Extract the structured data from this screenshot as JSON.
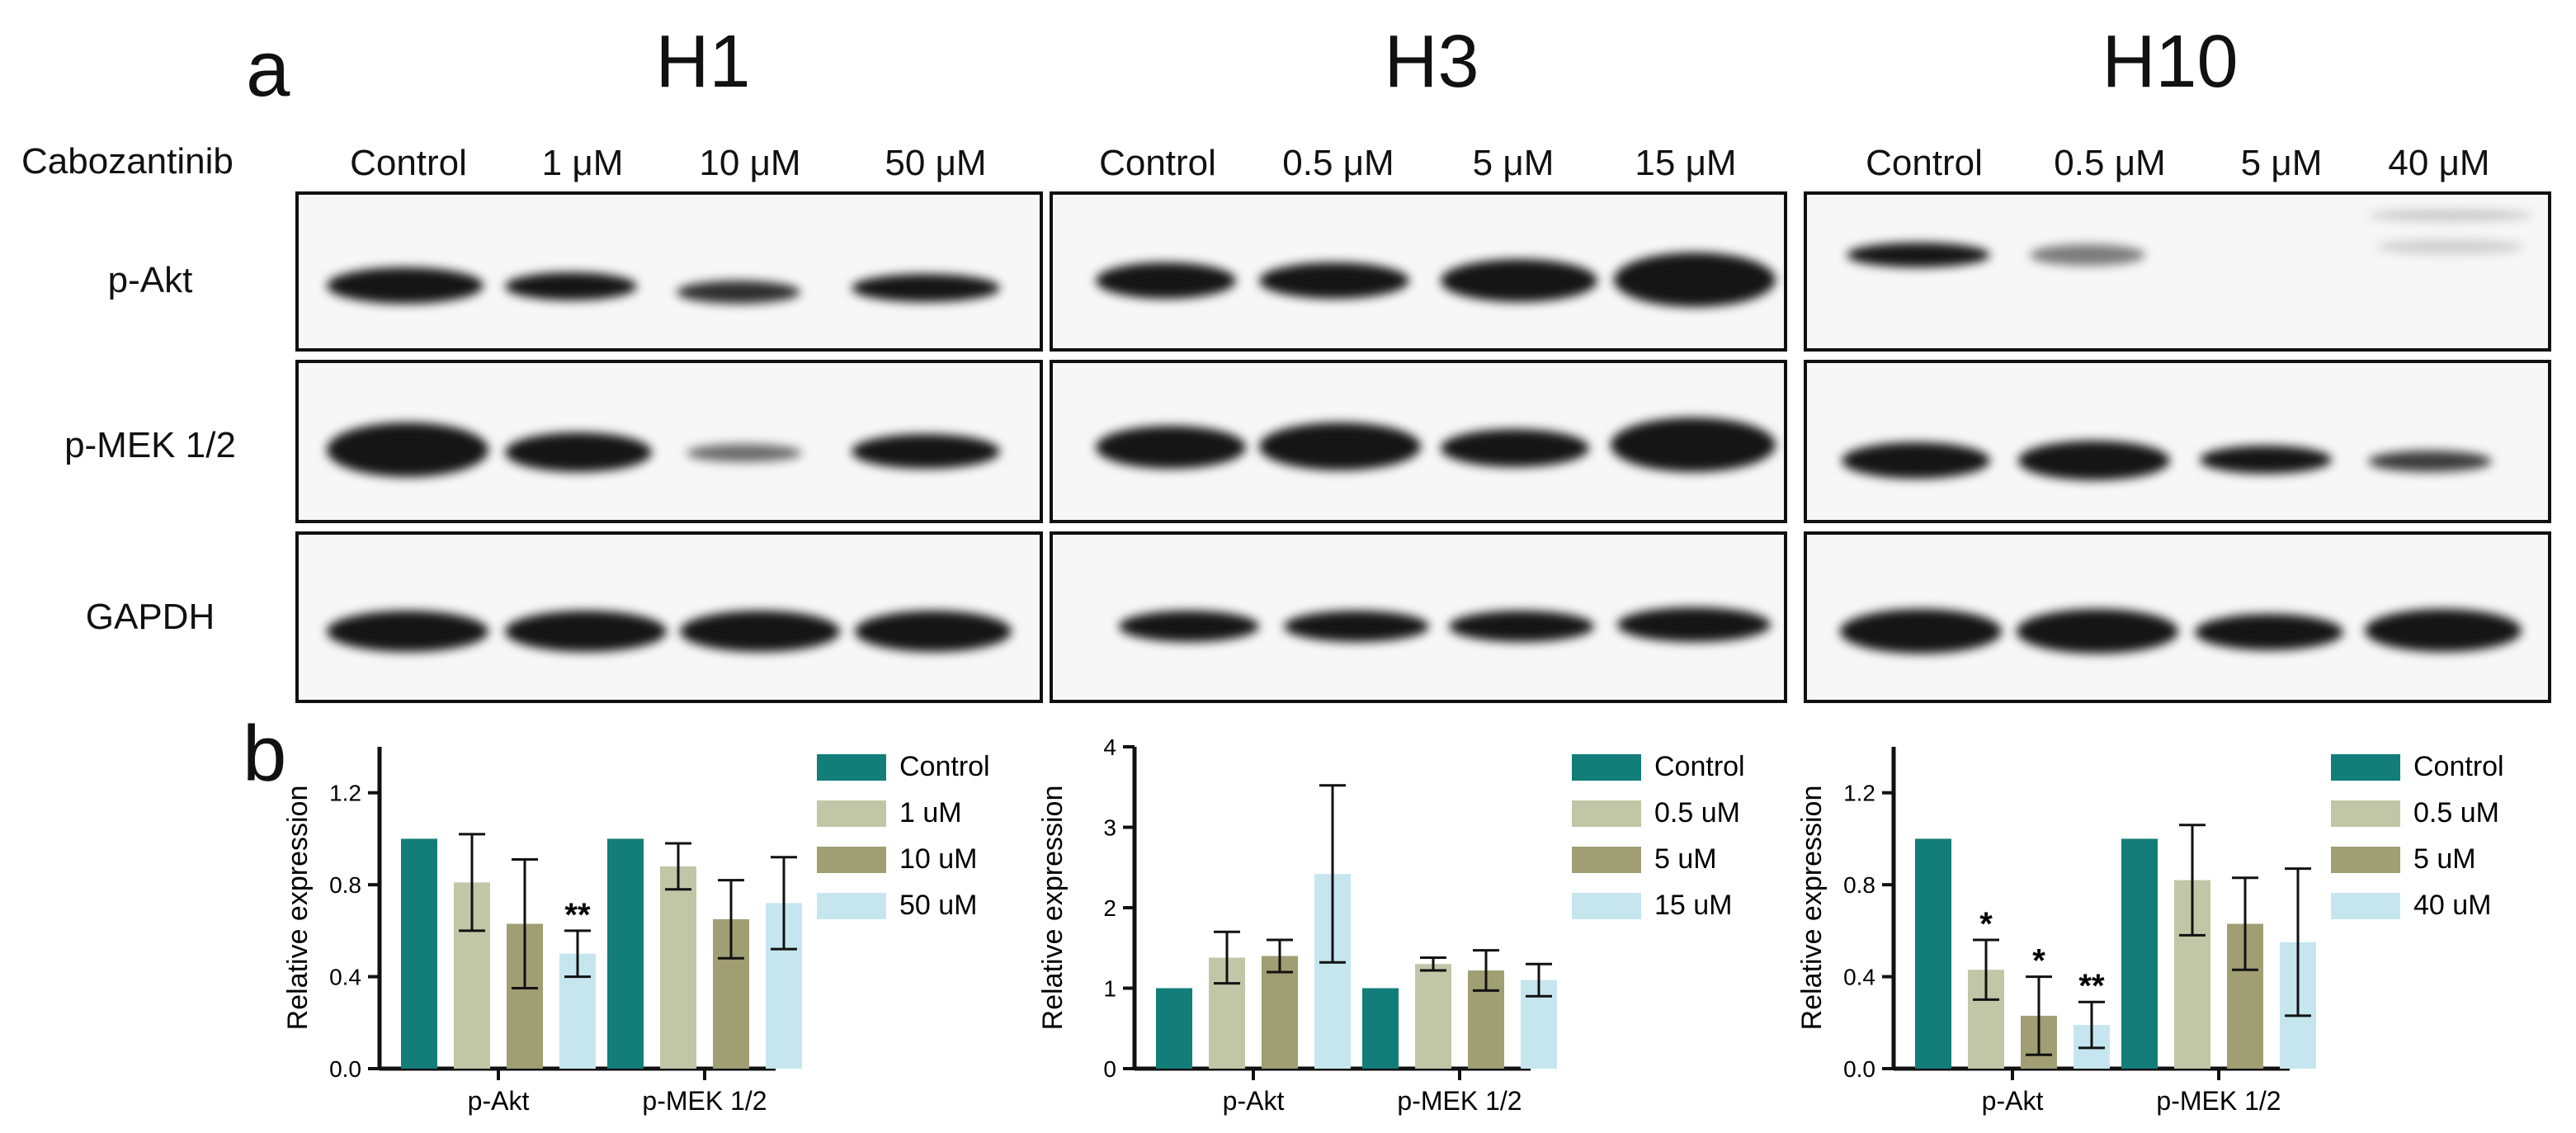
{
  "panels": {
    "a": "a",
    "b": "b"
  },
  "treatment_label": "Cabozantinib",
  "row_labels": [
    "p-Akt",
    "p-MEK 1/2",
    "GAPDH"
  ],
  "groups": [
    {
      "title": "H1",
      "concentrations": [
        "Control",
        "1 μM",
        "10 μM",
        "50 μM"
      ]
    },
    {
      "title": "H3",
      "concentrations": [
        "Control",
        "0.5 μM",
        "5 μM",
        "15 μM"
      ]
    },
    {
      "title": "H10",
      "concentrations": [
        "Control",
        "0.5 μM",
        "5 μM",
        "40 μM"
      ]
    }
  ],
  "colors": {
    "control": "#127d79",
    "dose1": "#c1c6a6",
    "dose2": "#a09e73",
    "dose3": "#c6e6ef"
  },
  "chart_data": [
    {
      "type": "bar",
      "categories": [
        "p-Akt",
        "p-MEK 1/2"
      ],
      "ylabel": "Relative expression",
      "ylim": [
        0,
        1.4
      ],
      "yticks": [
        "0.0",
        "0.4",
        "0.8",
        "1.2"
      ],
      "ytick_values": [
        0,
        0.4,
        0.8,
        1.2
      ],
      "legend_position": "right",
      "series": [
        {
          "name": "Control",
          "values": [
            1.0,
            1.0
          ],
          "errors": [
            0,
            0
          ],
          "sig": [
            "",
            ""
          ]
        },
        {
          "name": "1 uM",
          "values": [
            0.81,
            0.88
          ],
          "errors": [
            0.21,
            0.1
          ],
          "sig": [
            "",
            ""
          ]
        },
        {
          "name": "10 uM",
          "values": [
            0.63,
            0.65
          ],
          "errors": [
            0.28,
            0.17
          ],
          "sig": [
            "",
            ""
          ]
        },
        {
          "name": "50 uM",
          "values": [
            0.5,
            0.72
          ],
          "errors": [
            0.1,
            0.2
          ],
          "sig": [
            "**",
            ""
          ]
        }
      ]
    },
    {
      "type": "bar",
      "categories": [
        "p-Akt",
        "p-MEK 1/2"
      ],
      "ylabel": "Relative expression",
      "ylim": [
        0,
        4
      ],
      "yticks": [
        "0",
        "1",
        "2",
        "3",
        "4"
      ],
      "ytick_values": [
        0,
        1,
        2,
        3,
        4
      ],
      "legend_position": "right",
      "series": [
        {
          "name": "Control",
          "values": [
            1.0,
            1.0
          ],
          "errors": [
            0,
            0
          ],
          "sig": [
            "",
            ""
          ]
        },
        {
          "name": "0.5 uM",
          "values": [
            1.38,
            1.3
          ],
          "errors": [
            0.32,
            0.08
          ],
          "sig": [
            "",
            ""
          ]
        },
        {
          "name": "5 uM",
          "values": [
            1.4,
            1.22
          ],
          "errors": [
            0.2,
            0.25
          ],
          "sig": [
            "",
            ""
          ]
        },
        {
          "name": "15 uM",
          "values": [
            2.42,
            1.1
          ],
          "errors": [
            1.1,
            0.2
          ],
          "sig": [
            "",
            ""
          ]
        }
      ]
    },
    {
      "type": "bar",
      "categories": [
        "p-Akt",
        "p-MEK 1/2"
      ],
      "ylabel": "Relative expression",
      "ylim": [
        0,
        1.4
      ],
      "yticks": [
        "0.0",
        "0.4",
        "0.8",
        "1.2"
      ],
      "ytick_values": [
        0,
        0.4,
        0.8,
        1.2
      ],
      "legend_position": "right",
      "series": [
        {
          "name": "Control",
          "values": [
            1.0,
            1.0
          ],
          "errors": [
            0,
            0
          ],
          "sig": [
            "",
            ""
          ]
        },
        {
          "name": "0.5 uM",
          "values": [
            0.43,
            0.82
          ],
          "errors": [
            0.13,
            0.24
          ],
          "sig": [
            "*",
            ""
          ]
        },
        {
          "name": "5 uM",
          "values": [
            0.23,
            0.63
          ],
          "errors": [
            0.17,
            0.2
          ],
          "sig": [
            "*",
            ""
          ]
        },
        {
          "name": "40 uM",
          "values": [
            0.19,
            0.55
          ],
          "errors": [
            0.1,
            0.32
          ],
          "sig": [
            "**",
            ""
          ]
        }
      ]
    }
  ]
}
